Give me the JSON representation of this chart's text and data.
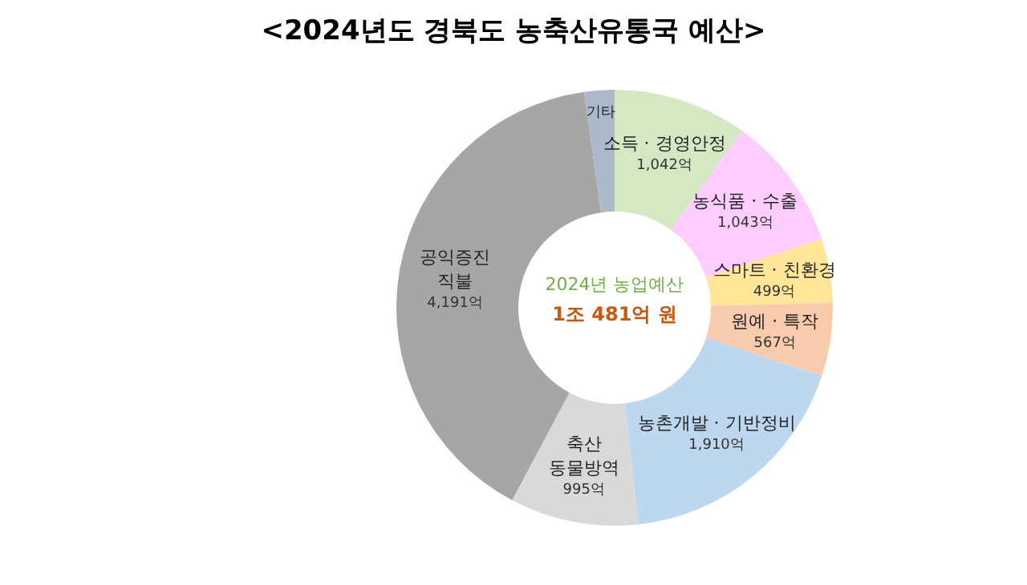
{
  "chart_data": {
    "type": "donut",
    "title": "<2024년도 경북도 농축산유통국 예산>",
    "categories": [
      "소득 · 경영안정",
      "농식품 · 수출",
      "스마트 · 친환경",
      "원예 · 특작",
      "농촌개발 · 기반정비",
      "축산\n동물방역",
      "공익증진\n직불",
      "기타"
    ],
    "values": [
      1042,
      1043,
      499,
      567,
      1910,
      995,
      4191,
      234
    ],
    "value_labels": [
      "1,042억",
      "1,043억",
      "499억",
      "567억",
      "1,910억",
      "995억",
      "4,191억",
      null
    ],
    "colors": [
      "#d5e8c4",
      "#ffccff",
      "#ffe699",
      "#f8cbad",
      "#bdd7ee",
      "#d9d9d9",
      "#a6a6a6",
      "#acb9ca"
    ],
    "annotations": [
      "2024년 농업예산",
      "1조 481억 원"
    ],
    "legend": false
  }
}
